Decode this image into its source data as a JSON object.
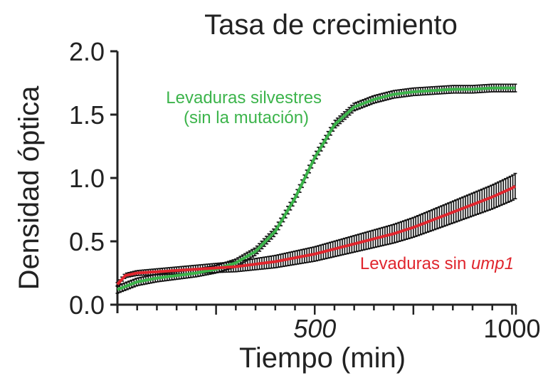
{
  "chart_data": {
    "type": "line",
    "title": "Tasa de crecimiento",
    "xlabel": "Tiempo (min)",
    "ylabel": "Densidad óptica",
    "xlim": [
      0,
      1010
    ],
    "ylim": [
      0.0,
      2.0
    ],
    "xticks": [
      {
        "value": 500,
        "label": "500",
        "italic": true
      },
      {
        "value": 1000,
        "label": "1000",
        "italic": false
      }
    ],
    "yticks": [
      {
        "value": 0.0,
        "label": "0.0"
      },
      {
        "value": 0.5,
        "label": "0.5"
      },
      {
        "value": 1.0,
        "label": "1.0"
      },
      {
        "value": 1.5,
        "label": "1.5"
      },
      {
        "value": 2.0,
        "label": "2.0"
      }
    ],
    "grid": false,
    "series": [
      {
        "name": "Levaduras silvestres (sin la mutación)",
        "label_lines": [
          "Levaduras silvestres",
          "(sin la mutación)"
        ],
        "color": "#3cb44b",
        "x": [
          0,
          50,
          100,
          150,
          200,
          250,
          300,
          350,
          400,
          450,
          500,
          550,
          600,
          650,
          700,
          750,
          800,
          850,
          900,
          950,
          1000,
          1010
        ],
        "y": [
          0.12,
          0.18,
          0.21,
          0.23,
          0.25,
          0.28,
          0.33,
          0.42,
          0.58,
          0.84,
          1.16,
          1.42,
          1.56,
          1.62,
          1.66,
          1.68,
          1.69,
          1.7,
          1.7,
          1.71,
          1.71,
          1.71
        ],
        "error": 0.03
      },
      {
        "name": "Levaduras sin ump1",
        "label_prefix": "Levaduras sin ",
        "label_italic": "ump1",
        "color": "#e0262e",
        "x": [
          0,
          20,
          50,
          100,
          150,
          200,
          250,
          300,
          350,
          400,
          450,
          500,
          550,
          600,
          650,
          700,
          750,
          800,
          850,
          900,
          950,
          1000,
          1010
        ],
        "y": [
          0.16,
          0.23,
          0.25,
          0.26,
          0.27,
          0.28,
          0.29,
          0.3,
          0.32,
          0.34,
          0.37,
          0.4,
          0.44,
          0.48,
          0.52,
          0.56,
          0.61,
          0.67,
          0.73,
          0.79,
          0.85,
          0.92,
          0.94
        ],
        "error_start": 0.015,
        "error_end": 0.1
      }
    ]
  }
}
